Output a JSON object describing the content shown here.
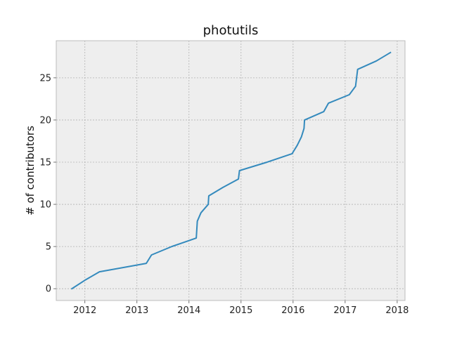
{
  "chart_data": {
    "type": "line",
    "title": "photutils",
    "xlabel": "",
    "ylabel": "# of contributors",
    "xlim": [
      2011.45,
      2018.15
    ],
    "ylim": [
      -1.4,
      29.4
    ],
    "xticks": [
      2012,
      2013,
      2014,
      2015,
      2016,
      2017,
      2018
    ],
    "xtick_labels": [
      "2012",
      "2013",
      "2014",
      "2015",
      "2016",
      "2017",
      "2018"
    ],
    "yticks": [
      0,
      5,
      10,
      15,
      20,
      25
    ],
    "ytick_labels": [
      "0",
      "5",
      "10",
      "15",
      "20",
      "25"
    ],
    "grid": true,
    "colors": {
      "line": "#348abd",
      "plot_background": "#eeeeee",
      "grid": "#b2b2b2",
      "spine": "#bcbcbc"
    },
    "series": [
      {
        "x": [
          2011.75,
          2012.0,
          2012.28,
          2013.18,
          2013.28,
          2013.67,
          2014.14,
          2014.15,
          2014.16,
          2014.23,
          2014.37,
          2014.38,
          2014.65,
          2014.95,
          2014.97,
          2015.5,
          2015.98,
          2016.08,
          2016.16,
          2016.21,
          2016.22,
          2016.59,
          2016.68,
          2017.08,
          2017.2,
          2017.24,
          2017.6,
          2017.87
        ],
        "y": [
          0,
          1,
          2,
          3,
          4,
          5,
          6,
          7,
          8,
          9,
          10,
          11,
          12,
          13,
          14,
          15,
          16,
          17,
          18,
          19,
          20,
          21,
          22,
          23,
          24,
          26,
          27,
          28
        ]
      }
    ]
  }
}
